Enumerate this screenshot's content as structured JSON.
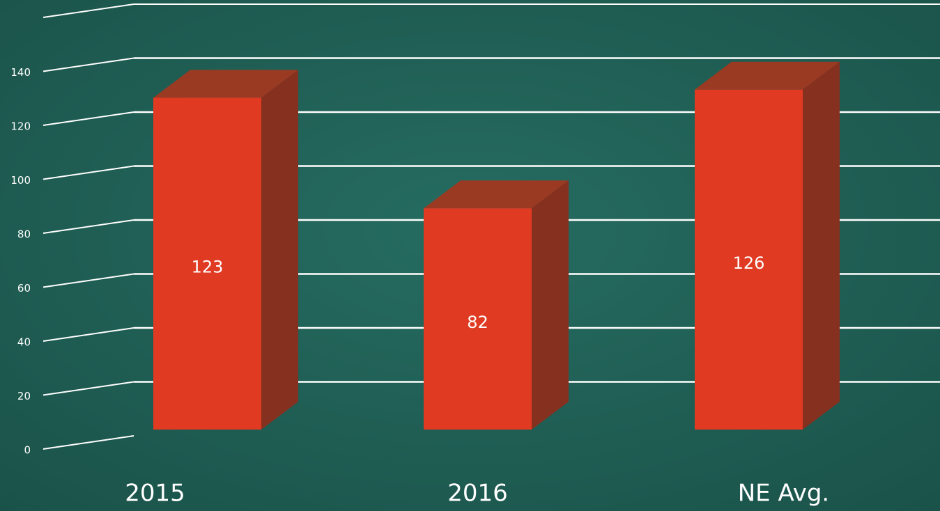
{
  "chart_data": {
    "type": "bar3d",
    "categories": [
      "2015",
      "2016",
      "NE Avg."
    ],
    "values": [
      123,
      82,
      126
    ],
    "color": "#e03a22",
    "ylim": [
      0,
      160
    ],
    "yticks": [
      0,
      20,
      40,
      60,
      80,
      100,
      120,
      140
    ],
    "grid": true
  }
}
